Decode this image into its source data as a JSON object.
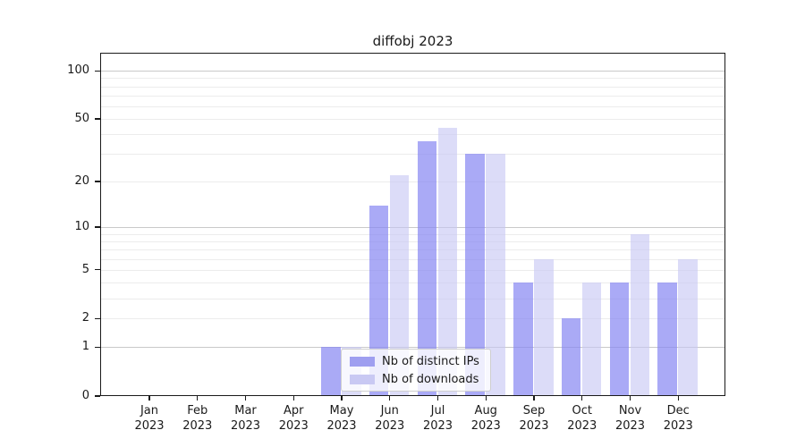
{
  "page": {
    "background": "#ffffff"
  },
  "chart_data": {
    "type": "bar",
    "title": "diffobj 2023",
    "categories": [
      "Jan 2023",
      "Feb 2023",
      "Mar 2023",
      "Apr 2023",
      "May 2023",
      "Jun 2023",
      "Jul 2023",
      "Aug 2023",
      "Sep 2023",
      "Oct 2023",
      "Nov 2023",
      "Dec 2023"
    ],
    "series": [
      {
        "name": "Nb of distinct IPs",
        "color": "#9f9ff0",
        "fill": "rgba(134,134,242,0.70)",
        "values": [
          0,
          0,
          0,
          0,
          1,
          14,
          36,
          30,
          4,
          2,
          4,
          4
        ]
      },
      {
        "name": "Nb of downloads",
        "color": "#c9c9f3",
        "fill": "rgba(198,198,244,0.62)",
        "values": [
          0,
          0,
          0,
          0,
          1,
          22,
          44,
          30,
          6,
          4,
          9,
          6
        ]
      }
    ],
    "xlabel": "",
    "ylabel": "",
    "y_axis": {
      "scale": "log1p",
      "ticks": [
        0,
        1,
        2,
        5,
        10,
        20,
        50,
        100
      ],
      "ylim": [
        0,
        130
      ],
      "grid_major": [
        1,
        10,
        100
      ],
      "grid_minor": [
        2,
        3,
        4,
        5,
        6,
        7,
        8,
        9,
        20,
        30,
        40,
        50,
        60,
        70,
        80,
        90
      ]
    },
    "grid": {
      "on": true,
      "major_color": "#c9c9c9",
      "minor_color": "#ececec"
    },
    "axis_color": "#1a1a1a",
    "legend": {
      "position": "lower-center",
      "entries": [
        "Nb of distinct IPs",
        "Nb of downloads"
      ]
    }
  }
}
